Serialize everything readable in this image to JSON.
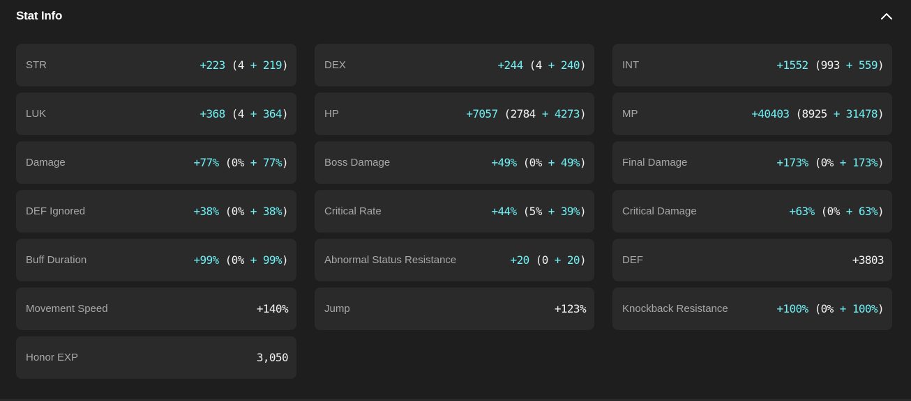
{
  "panel": {
    "title": "Stat Info",
    "collapse_icon": "chevron-up-icon"
  },
  "colors": {
    "background": "#1e1e1e",
    "card": "#2a2a2a",
    "accent": "#6ef0f4",
    "label": "#a8a8a8",
    "value_plain": "#f2f2f2"
  },
  "stats": [
    {
      "label": "STR",
      "total": "+223",
      "base": "4",
      "bonus": "219"
    },
    {
      "label": "DEX",
      "total": "+244",
      "base": "4",
      "bonus": "240"
    },
    {
      "label": "INT",
      "total": "+1552",
      "base": "993",
      "bonus": "559"
    },
    {
      "label": "LUK",
      "total": "+368",
      "base": "4",
      "bonus": "364"
    },
    {
      "label": "HP",
      "total": "+7057",
      "base": "2784",
      "bonus": "4273"
    },
    {
      "label": "MP",
      "total": "+40403",
      "base": "8925",
      "bonus": "31478"
    },
    {
      "label": "Damage",
      "total": "+77%",
      "base": "0%",
      "bonus": "77%"
    },
    {
      "label": "Boss Damage",
      "total": "+49%",
      "base": "0%",
      "bonus": "49%"
    },
    {
      "label": "Final Damage",
      "total": "+173%",
      "base": "0%",
      "bonus": "173%"
    },
    {
      "label": "DEF Ignored",
      "total": "+38%",
      "base": "0%",
      "bonus": "38%"
    },
    {
      "label": "Critical Rate",
      "total": "+44%",
      "base": "5%",
      "bonus": "39%"
    },
    {
      "label": "Critical Damage",
      "total": "+63%",
      "base": "0%",
      "bonus": "63%"
    },
    {
      "label": "Buff Duration",
      "total": "+99%",
      "base": "0%",
      "bonus": "99%"
    },
    {
      "label": "Abnormal Status Resistance",
      "total": "+20",
      "base": "0",
      "bonus": "20"
    },
    {
      "label": "DEF",
      "plain": "+3803"
    },
    {
      "label": "Movement Speed",
      "plain": "+140%"
    },
    {
      "label": "Jump",
      "plain": "+123%"
    },
    {
      "label": "Knockback Resistance",
      "total": "+100%",
      "base": "0%",
      "bonus": "100%"
    },
    {
      "label": "Honor EXP",
      "plain": "3,050"
    }
  ]
}
